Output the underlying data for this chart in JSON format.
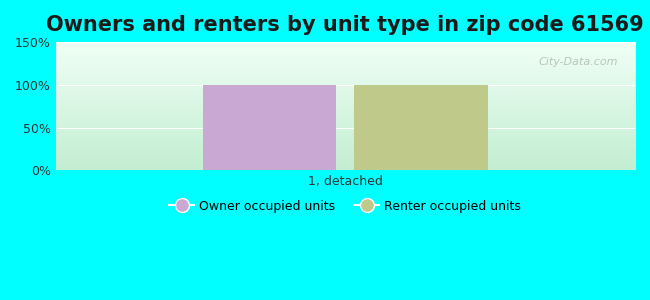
{
  "title": "Owners and renters by unit type in zip code 61569",
  "categories": [
    "1, detached"
  ],
  "owner_values": [
    100
  ],
  "renter_values": [
    100
  ],
  "owner_color": "#c9a8d4",
  "renter_color": "#bec98a",
  "ylim": [
    0,
    150
  ],
  "yticks": [
    0,
    50,
    100,
    150
  ],
  "ytick_labels": [
    "0%",
    "50%",
    "100%",
    "150%"
  ],
  "background_color": "#00ffff",
  "title_fontsize": 15,
  "legend_owner": "Owner occupied units",
  "legend_renter": "Renter occupied units",
  "bar_width": 0.3,
  "watermark": "City-Data.com"
}
